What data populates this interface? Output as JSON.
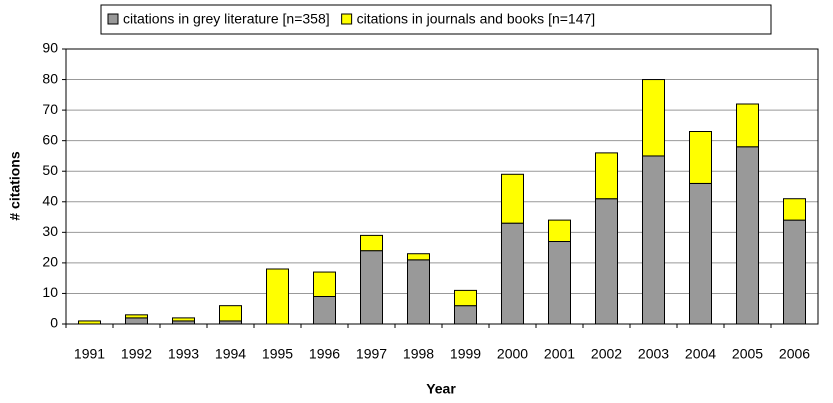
{
  "chart_data": {
    "type": "stacked_bar",
    "x_label": "Year",
    "y_label": "# citations",
    "categories": [
      "1991",
      "1992",
      "1993",
      "1994",
      "1995",
      "1996",
      "1997",
      "1998",
      "1999",
      "2000",
      "2001",
      "2002",
      "2003",
      "2004",
      "2005",
      "2006"
    ],
    "series": [
      {
        "name": "citations in grey literature [n=358]",
        "color": "#999999",
        "values": [
          0,
          2,
          1,
          1,
          0,
          9,
          24,
          21,
          6,
          33,
          27,
          41,
          55,
          46,
          58,
          34
        ]
      },
      {
        "name": "citations in journals and books [n=147]",
        "color": "#ffff00",
        "values": [
          1,
          1,
          1,
          5,
          18,
          8,
          5,
          2,
          5,
          16,
          7,
          15,
          25,
          17,
          14,
          7
        ]
      }
    ],
    "ylim": [
      0,
      90
    ],
    "yticks": [
      0,
      10,
      20,
      30,
      40,
      50,
      60,
      70,
      80,
      90
    ],
    "grid": true,
    "legend": "top"
  }
}
